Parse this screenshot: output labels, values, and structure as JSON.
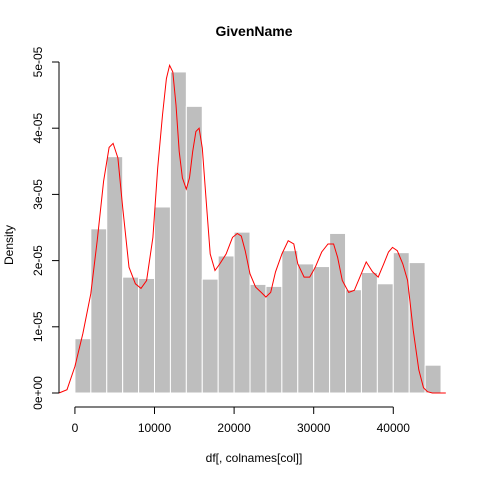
{
  "chart_data": {
    "type": "bar",
    "title": "GivenName",
    "xlabel": "df[, colnames[col]]",
    "ylabel": "Density",
    "xlim": [
      -2000,
      47000
    ],
    "ylim": [
      0,
      5e-05
    ],
    "x_ticks": [
      0,
      10000,
      20000,
      30000,
      40000
    ],
    "x_tick_labels": [
      "0",
      "10000",
      "20000",
      "30000",
      "40000"
    ],
    "y_ticks": [
      0,
      1e-05,
      2e-05,
      3e-05,
      4e-05,
      5e-05
    ],
    "y_tick_labels": [
      "0e+00",
      "1e-05",
      "2e-05",
      "3e-05",
      "4e-05",
      "5e-05"
    ],
    "bin_width": 2000,
    "bin_starts": [
      0,
      2000,
      4000,
      6000,
      8000,
      10000,
      12000,
      14000,
      16000,
      18000,
      20000,
      22000,
      24000,
      26000,
      28000,
      30000,
      32000,
      34000,
      36000,
      38000,
      40000,
      42000,
      44000
    ],
    "values": [
      8.2e-06,
      2.48e-05,
      3.57e-05,
      1.75e-05,
      1.73e-05,
      2.81e-05,
      4.85e-05,
      4.33e-05,
      1.72e-05,
      2.07e-05,
      2.43e-05,
      1.64e-05,
      1.61e-05,
      2.15e-05,
      1.95e-05,
      1.91e-05,
      2.41e-05,
      1.56e-05,
      1.82e-05,
      1.65e-05,
      2.12e-05,
      1.97e-05,
      4.2e-06
    ],
    "series": [
      {
        "type": "line",
        "color": "#ff0000",
        "x": [
          -2000,
          -1000,
          0,
          1000,
          2000,
          2800,
          3600,
          4300,
          4800,
          5400,
          6000,
          6800,
          7600,
          8300,
          9000,
          9800,
          10400,
          11000,
          11500,
          11900,
          12300,
          12700,
          13100,
          13500,
          14000,
          14400,
          14800,
          15200,
          15600,
          16000,
          16500,
          17000,
          17600,
          18200,
          19000,
          19800,
          20400,
          20900,
          21400,
          22000,
          22700,
          23400,
          24000,
          24600,
          25200,
          26000,
          26800,
          27500,
          28000,
          28800,
          29500,
          30200,
          31000,
          31800,
          32500,
          33000,
          33600,
          34400,
          35100,
          35800,
          36600,
          37400,
          38100,
          38800,
          39400,
          39900,
          40500,
          41200,
          41800,
          42500,
          43200,
          43800,
          44300,
          44900,
          45500,
          46000,
          46600
        ],
        "y": [
          0,
          5e-07,
          4e-06,
          9e-06,
          1.5e-05,
          2.3e-05,
          3.2e-05,
          3.71e-05,
          3.77e-05,
          3.55e-05,
          2.8e-05,
          1.9e-05,
          1.65e-05,
          1.58e-05,
          1.7e-05,
          2.35e-05,
          3.4e-05,
          4.2e-05,
          4.75e-05,
          4.95e-05,
          4.85e-05,
          4.35e-05,
          3.65e-05,
          3.25e-05,
          3.08e-05,
          3.25e-05,
          3.65e-05,
          3.95e-05,
          4e-05,
          3.7e-05,
          2.9e-05,
          2.1e-05,
          1.85e-05,
          1.95e-05,
          2.1e-05,
          2.35e-05,
          2.41e-05,
          2.37e-05,
          2.15e-05,
          1.8e-05,
          1.6e-05,
          1.52e-05,
          1.45e-05,
          1.52e-05,
          1.83e-05,
          2.1e-05,
          2.3e-05,
          2.25e-05,
          1.95e-05,
          1.75e-05,
          1.75e-05,
          1.9e-05,
          2.13e-05,
          2.25e-05,
          2.25e-05,
          2.05e-05,
          1.7e-05,
          1.52e-05,
          1.55e-05,
          1.75e-05,
          1.98e-05,
          1.83e-05,
          1.75e-05,
          1.95e-05,
          2.13e-05,
          2.2e-05,
          2.15e-05,
          1.95e-05,
          1.7e-05,
          9.5e-06,
          3.5e-06,
          8e-07,
          2e-07,
          0,
          0,
          0,
          0
        ]
      }
    ]
  }
}
